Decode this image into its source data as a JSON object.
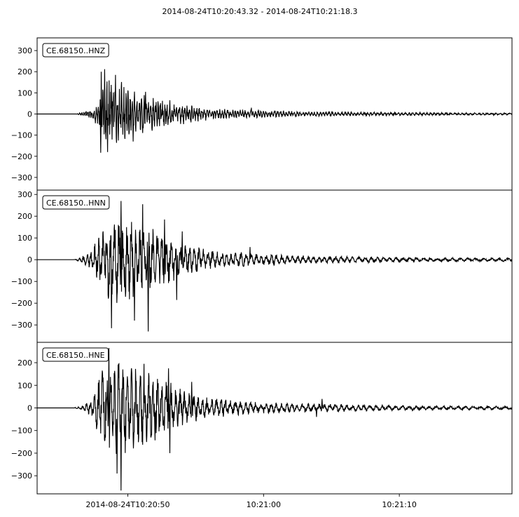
{
  "chart_data": {
    "type": "line",
    "title": "2014-08-24T10:20:43.32  -  2014-08-24T10:21:18.3",
    "start_time_s": 43.32,
    "end_time_s": 78.3,
    "x_ticks": [
      {
        "t": 50,
        "label": "2014-08-24T10:20:50"
      },
      {
        "t": 60,
        "label": "10:21:00"
      },
      {
        "t": 70,
        "label": "10:21:10"
      }
    ],
    "grid": false,
    "line_color": "#000000",
    "series": [
      {
        "name": "CE.68150..HNZ",
        "ylim": [
          -360,
          360
        ],
        "y_ticks": [
          300,
          200,
          100,
          0,
          -100,
          -200,
          -300
        ],
        "tick_labels": [
          "300",
          "200",
          "100",
          "0",
          "−100",
          "−200",
          "−300"
        ],
        "envelope": [
          [
            43.32,
            0
          ],
          [
            46.2,
            0
          ],
          [
            46.6,
            8
          ],
          [
            47.5,
            30
          ],
          [
            48.0,
            100
          ],
          [
            48.5,
            180
          ],
          [
            49.2,
            180
          ],
          [
            50.0,
            140
          ],
          [
            51.0,
            100
          ],
          [
            52.0,
            80
          ],
          [
            53.0,
            60
          ],
          [
            54.0,
            50
          ],
          [
            55.0,
            40
          ],
          [
            56.0,
            32
          ],
          [
            57.0,
            25
          ],
          [
            58.0,
            20
          ],
          [
            60.0,
            18
          ],
          [
            62.0,
            14
          ],
          [
            64.0,
            12
          ],
          [
            66.0,
            10
          ],
          [
            70.0,
            8
          ],
          [
            74.0,
            6
          ],
          [
            78.3,
            5
          ]
        ],
        "freq": 6.5,
        "seed": 11,
        "peaks": [
          {
            "t": 48.3,
            "v": 212
          },
          {
            "t": 48.05,
            "v": 200
          },
          {
            "t": 49.1,
            "v": 185
          },
          {
            "t": 48.0,
            "v": -183
          },
          {
            "t": 48.5,
            "v": -180
          },
          {
            "t": 50.4,
            "v": -130
          },
          {
            "t": 51.3,
            "v": 105
          },
          {
            "t": 53.1,
            "v": 65
          },
          {
            "t": 59.1,
            "v": 30
          }
        ]
      },
      {
        "name": "CE.68150..HNN",
        "ylim": [
          -380,
          320
        ],
        "y_ticks": [
          300,
          200,
          100,
          0,
          -100,
          -200,
          -300
        ],
        "tick_labels": [
          "300",
          "200",
          "100",
          "0",
          "−100",
          "−200",
          "−300"
        ],
        "envelope": [
          [
            43.32,
            0
          ],
          [
            46.0,
            0
          ],
          [
            46.5,
            10
          ],
          [
            47.4,
            50
          ],
          [
            48.0,
            150
          ],
          [
            48.8,
            200
          ],
          [
            50.5,
            200
          ],
          [
            51.5,
            160
          ],
          [
            52.5,
            130
          ],
          [
            53.5,
            100
          ],
          [
            54.5,
            70
          ],
          [
            56.0,
            45
          ],
          [
            58.0,
            35
          ],
          [
            60.0,
            28
          ],
          [
            62.0,
            22
          ],
          [
            64.0,
            18
          ],
          [
            68.0,
            14
          ],
          [
            72.0,
            10
          ],
          [
            78.3,
            8
          ]
        ],
        "freq": 3.5,
        "seed": 29,
        "peaks": [
          {
            "t": 49.5,
            "v": 270
          },
          {
            "t": 51.1,
            "v": 255
          },
          {
            "t": 48.8,
            "v": -315
          },
          {
            "t": 51.5,
            "v": -330
          },
          {
            "t": 50.5,
            "v": -280
          },
          {
            "t": 52.7,
            "v": 185
          },
          {
            "t": 54.0,
            "v": 130
          },
          {
            "t": 53.6,
            "v": -185
          },
          {
            "t": 59.0,
            "v": 58
          }
        ]
      },
      {
        "name": "CE.68150..HNE",
        "ylim": [
          -380,
          290
        ],
        "y_ticks": [
          200,
          100,
          0,
          -100,
          -200,
          -300
        ],
        "tick_labels": [
          "200",
          "100",
          "0",
          "−100",
          "−200",
          "−300"
        ],
        "envelope": [
          [
            43.32,
            0
          ],
          [
            46.0,
            0
          ],
          [
            46.5,
            8
          ],
          [
            47.4,
            40
          ],
          [
            48.0,
            180
          ],
          [
            48.8,
            230
          ],
          [
            50.5,
            200
          ],
          [
            51.5,
            170
          ],
          [
            52.5,
            140
          ],
          [
            53.5,
            100
          ],
          [
            54.5,
            70
          ],
          [
            56.0,
            45
          ],
          [
            58.0,
            35
          ],
          [
            60.0,
            25
          ],
          [
            62.0,
            22
          ],
          [
            64.0,
            20
          ],
          [
            68.0,
            14
          ],
          [
            72.0,
            10
          ],
          [
            78.3,
            8
          ]
        ],
        "freq": 3.5,
        "seed": 47,
        "peaks": [
          {
            "t": 48.6,
            "v": 265
          },
          {
            "t": 49.5,
            "v": -365
          },
          {
            "t": 49.2,
            "v": -290
          },
          {
            "t": 51.2,
            "v": 195
          },
          {
            "t": 53.0,
            "v": 175
          },
          {
            "t": 53.1,
            "v": -200
          },
          {
            "t": 54.7,
            "v": 115
          },
          {
            "t": 64.3,
            "v": 40
          },
          {
            "t": 63.9,
            "v": -40
          }
        ]
      }
    ]
  }
}
